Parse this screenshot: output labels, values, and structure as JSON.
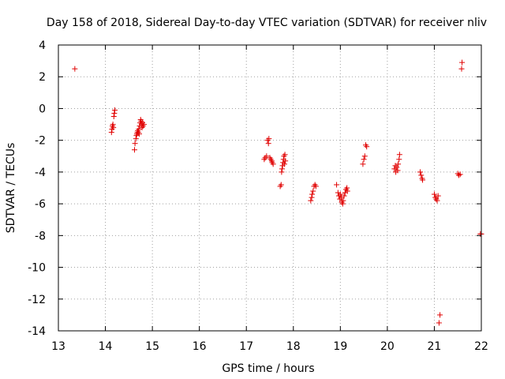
{
  "chart_data": {
    "type": "scatter",
    "title": "Day 158 of 2018, Sidereal Day-to-day VTEC variation (SDTVAR) for receiver nliv",
    "xlabel": "GPS time / hours",
    "ylabel": "SDTVAR / TECUs",
    "xlim": [
      13,
      22
    ],
    "ylim": [
      -14,
      4
    ],
    "xticks": [
      "13",
      "14",
      "15",
      "16",
      "17",
      "18",
      "19",
      "20",
      "21",
      "22"
    ],
    "yticks": [
      "4",
      "2",
      "0",
      "-2",
      "-4",
      "-6",
      "-8",
      "-10",
      "-12",
      "-14"
    ],
    "grid": true,
    "marker": "+",
    "color": "#e00000",
    "series": [
      {
        "name": "SDTVAR",
        "points": [
          [
            13.35,
            2.5
          ],
          [
            14.13,
            -1.5
          ],
          [
            14.14,
            -1.3
          ],
          [
            14.15,
            -1.1
          ],
          [
            14.16,
            -1.0
          ],
          [
            14.17,
            -1.2
          ],
          [
            14.18,
            -0.5
          ],
          [
            14.19,
            -0.3
          ],
          [
            14.2,
            -0.1
          ],
          [
            14.62,
            -2.6
          ],
          [
            14.63,
            -2.2
          ],
          [
            14.65,
            -1.9
          ],
          [
            14.66,
            -1.7
          ],
          [
            14.67,
            -1.6
          ],
          [
            14.68,
            -1.5
          ],
          [
            14.69,
            -1.4
          ],
          [
            14.7,
            -1.5
          ],
          [
            14.71,
            -1.3
          ],
          [
            14.72,
            -1.6
          ],
          [
            14.73,
            -1.1
          ],
          [
            14.74,
            -0.9
          ],
          [
            14.75,
            -0.7
          ],
          [
            14.76,
            -0.8
          ],
          [
            14.77,
            -1.0
          ],
          [
            14.78,
            -1.2
          ],
          [
            14.79,
            -0.9
          ],
          [
            14.8,
            -1.1
          ],
          [
            14.82,
            -1.0
          ],
          [
            17.38,
            -3.2
          ],
          [
            17.4,
            -3.1
          ],
          [
            17.43,
            -3.0
          ],
          [
            17.45,
            -2.0
          ],
          [
            17.47,
            -2.2
          ],
          [
            17.48,
            -1.9
          ],
          [
            17.5,
            -3.1
          ],
          [
            17.52,
            -3.2
          ],
          [
            17.54,
            -3.3
          ],
          [
            17.55,
            -3.4
          ],
          [
            17.57,
            -3.5
          ],
          [
            17.72,
            -4.9
          ],
          [
            17.74,
            -4.8
          ],
          [
            17.75,
            -4.0
          ],
          [
            17.76,
            -3.8
          ],
          [
            17.77,
            -3.6
          ],
          [
            17.78,
            -3.4
          ],
          [
            17.79,
            -3.2
          ],
          [
            17.8,
            -3.0
          ],
          [
            17.81,
            -3.5
          ],
          [
            17.82,
            -2.9
          ],
          [
            17.83,
            -3.3
          ],
          [
            18.37,
            -5.8
          ],
          [
            18.39,
            -5.6
          ],
          [
            18.4,
            -5.4
          ],
          [
            18.42,
            -5.2
          ],
          [
            18.44,
            -4.9
          ],
          [
            18.46,
            -4.8
          ],
          [
            18.48,
            -4.9
          ],
          [
            18.92,
            -4.8
          ],
          [
            18.95,
            -5.3
          ],
          [
            18.97,
            -5.5
          ],
          [
            18.99,
            -5.7
          ],
          [
            19.0,
            -5.4
          ],
          [
            19.02,
            -5.6
          ],
          [
            19.03,
            -5.9
          ],
          [
            19.05,
            -6.0
          ],
          [
            19.06,
            -5.8
          ],
          [
            19.08,
            -5.5
          ],
          [
            19.1,
            -5.3
          ],
          [
            19.12,
            -5.1
          ],
          [
            19.14,
            -5.0
          ],
          [
            19.15,
            -5.2
          ],
          [
            19.48,
            -3.5
          ],
          [
            19.5,
            -3.2
          ],
          [
            19.52,
            -3.0
          ],
          [
            19.54,
            -2.3
          ],
          [
            19.56,
            -2.4
          ],
          [
            20.15,
            -3.8
          ],
          [
            20.17,
            -3.6
          ],
          [
            20.18,
            -4.0
          ],
          [
            20.2,
            -3.7
          ],
          [
            20.22,
            -3.9
          ],
          [
            20.23,
            -3.5
          ],
          [
            20.25,
            -3.2
          ],
          [
            20.26,
            -2.9
          ],
          [
            20.7,
            -4.0
          ],
          [
            20.72,
            -4.2
          ],
          [
            20.74,
            -4.4
          ],
          [
            20.75,
            -4.5
          ],
          [
            21.0,
            -5.4
          ],
          [
            21.02,
            -5.6
          ],
          [
            21.04,
            -5.7
          ],
          [
            21.06,
            -5.8
          ],
          [
            21.08,
            -5.5
          ],
          [
            21.1,
            -13.5
          ],
          [
            21.12,
            -13.0
          ],
          [
            21.5,
            -4.1
          ],
          [
            21.52,
            -4.2
          ],
          [
            21.55,
            -4.15
          ],
          [
            21.58,
            2.5
          ],
          [
            21.59,
            2.9
          ],
          [
            21.98,
            -7.9
          ],
          [
            22.0,
            -7.9
          ]
        ]
      }
    ]
  }
}
